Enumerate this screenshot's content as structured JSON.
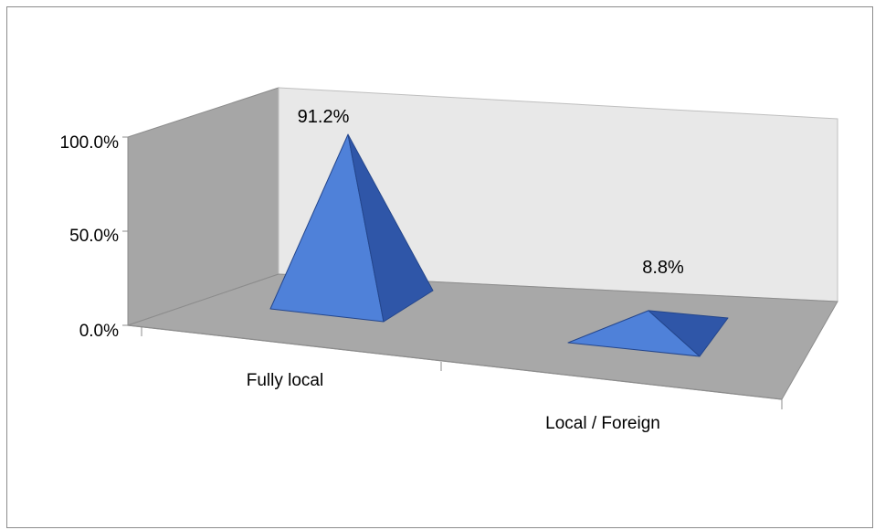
{
  "chart_data": {
    "type": "bar",
    "style": "3d-pyramid",
    "title": "",
    "xlabel": "",
    "ylabel": "",
    "categories": [
      "Fully local",
      "Local / Foreign"
    ],
    "series": [
      {
        "values": [
          91.2,
          8.8
        ],
        "color": "#4f81d9",
        "shade_color": "#2f56a8"
      }
    ],
    "data_labels": [
      "91.2%",
      "8.8%"
    ],
    "y_ticks": [
      "0.0%",
      "50.0%",
      "100.0%"
    ],
    "ylim": [
      0,
      100
    ],
    "legend": "none",
    "grid": false,
    "colors": {
      "back_wall": "#e8e8e8",
      "side_wall": "#a6a6a6",
      "floor": "#a8a8a8"
    }
  }
}
